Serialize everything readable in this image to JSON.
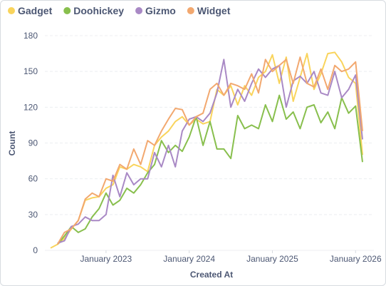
{
  "chart_data": {
    "type": "line",
    "x_label": "Created At",
    "y_label": "Count",
    "x": [
      "2022-05",
      "2022-06",
      "2022-07",
      "2022-08",
      "2022-09",
      "2022-10",
      "2022-11",
      "2022-12",
      "2023-01",
      "2023-02",
      "2023-03",
      "2023-04",
      "2023-05",
      "2023-06",
      "2023-07",
      "2023-08",
      "2023-09",
      "2023-10",
      "2023-11",
      "2023-12",
      "2024-01",
      "2024-02",
      "2024-03",
      "2024-04",
      "2024-05",
      "2024-06",
      "2024-07",
      "2024-08",
      "2024-09",
      "2024-10",
      "2024-11",
      "2024-12",
      "2025-01",
      "2025-02",
      "2025-03",
      "2025-04",
      "2025-05",
      "2025-06",
      "2025-07",
      "2025-08",
      "2025-09",
      "2025-10",
      "2025-11",
      "2025-12",
      "2026-01",
      "2026-02"
    ],
    "xlim": [
      "2022-05",
      "2026-02"
    ],
    "xticks": [
      {
        "value": "2023-01",
        "label": "January 2023"
      },
      {
        "value": "2024-01",
        "label": "January 2024"
      },
      {
        "value": "2025-01",
        "label": "January 2025"
      },
      {
        "value": "2026-01",
        "label": "January 2026"
      }
    ],
    "ylim": [
      0,
      180
    ],
    "yticks": [
      0,
      30,
      60,
      90,
      120,
      150,
      180
    ],
    "grid": true,
    "legend": "top",
    "series": [
      {
        "name": "Gadget",
        "color": "#f9d45c",
        "values": [
          2,
          5,
          10,
          18,
          25,
          42,
          44,
          45,
          52,
          55,
          70,
          68,
          72,
          70,
          66,
          88,
          95,
          100,
          108,
          112,
          105,
          110,
          106,
          108,
          135,
          130,
          138,
          122,
          138,
          130,
          145,
          150,
          164,
          140,
          162,
          125,
          145,
          165,
          135,
          148,
          165,
          166,
          158,
          145,
          140,
          80
        ]
      },
      {
        "name": "Doohickey",
        "color": "#88bf4d",
        "values": [
          null,
          5,
          12,
          20,
          15,
          18,
          28,
          35,
          48,
          38,
          42,
          52,
          48,
          55,
          65,
          72,
          92,
          82,
          88,
          83,
          95,
          112,
          88,
          108,
          85,
          85,
          77,
          113,
          102,
          105,
          102,
          122,
          108,
          130,
          110,
          116,
          102,
          120,
          122,
          107,
          116,
          102,
          128,
          115,
          121,
          74
        ]
      },
      {
        "name": "Gizmo",
        "color": "#a989c5",
        "values": [
          null,
          6,
          8,
          20,
          22,
          28,
          25,
          25,
          30,
          63,
          45,
          65,
          55,
          60,
          60,
          82,
          70,
          88,
          70,
          100,
          110,
          112,
          108,
          115,
          132,
          160,
          120,
          135,
          125,
          140,
          152,
          145,
          152,
          155,
          120,
          142,
          146,
          140,
          150,
          132,
          130,
          150,
          128,
          135,
          147,
          93
        ]
      },
      {
        "name": "Widget",
        "color": "#f2a86f",
        "values": [
          null,
          5,
          15,
          18,
          25,
          43,
          48,
          45,
          60,
          58,
          72,
          68,
          85,
          72,
          92,
          88,
          100,
          110,
          119,
          118,
          105,
          112,
          115,
          135,
          140,
          130,
          140,
          138,
          135,
          148,
          132,
          160,
          150,
          155,
          160,
          140,
          162,
          140,
          137,
          152,
          135,
          155,
          150,
          152,
          158,
          100
        ]
      }
    ]
  }
}
